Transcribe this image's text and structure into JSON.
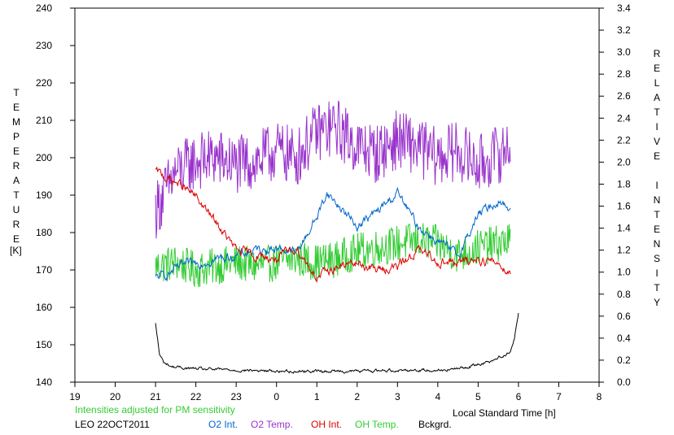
{
  "chart_data": {
    "type": "line",
    "xlabel": "Local Standard Time [h]",
    "y_left_label": "TEMPERATURE",
    "y_left_unit": "[K]",
    "y_right_label": "RELATIVE INTENSITY",
    "x_ticks": [
      "19",
      "20",
      "21",
      "22",
      "23",
      "0",
      "1",
      "2",
      "3",
      "4",
      "5",
      "6",
      "7",
      "8"
    ],
    "x_range": [
      19,
      32
    ],
    "y_left_range": [
      140,
      240
    ],
    "y_left_ticks": [
      140,
      150,
      160,
      170,
      180,
      190,
      200,
      210,
      220,
      230,
      240
    ],
    "y_right_range": [
      0.0,
      3.4
    ],
    "y_right_ticks": [
      "0.0",
      "0.2",
      "0.4",
      "0.6",
      "0.8",
      "1.0",
      "1.2",
      "1.4",
      "1.6",
      "1.8",
      "2.0",
      "2.2",
      "2.4",
      "2.6",
      "2.8",
      "3.0",
      "3.2",
      "3.4"
    ],
    "note": "Intensities adjusted for PM sensitivity",
    "station": "LEO 22OCT2011",
    "legend": [
      {
        "name": "O2 Int.",
        "color": "#0066cc"
      },
      {
        "name": "O2 Temp.",
        "color": "#9933cc"
      },
      {
        "name": "OH Int.",
        "color": "#dd0000"
      },
      {
        "name": "OH Temp.",
        "color": "#33cc33"
      },
      {
        "name": "Bckgrd.",
        "color": "#000000"
      }
    ],
    "series": [
      {
        "name": "O2 Temp.",
        "axis": "left",
        "color": "#9933cc",
        "x": [
          21.0,
          21.5,
          22.0,
          22.5,
          23.0,
          23.5,
          24.0,
          24.5,
          25.0,
          25.5,
          26.0,
          26.5,
          27.0,
          27.5,
          28.0,
          28.5,
          29.0,
          29.5,
          29.8
        ],
        "y": [
          186,
          196,
          199,
          200,
          198,
          199,
          202,
          200,
          207,
          208,
          203,
          201,
          205,
          203,
          200,
          202,
          198,
          201,
          203
        ],
        "noise": 8
      },
      {
        "name": "OH Temp.",
        "axis": "left",
        "color": "#33cc33",
        "x": [
          21.0,
          21.5,
          22.0,
          22.5,
          23.0,
          23.5,
          24.0,
          24.5,
          25.0,
          25.5,
          26.0,
          26.5,
          27.0,
          27.5,
          28.0,
          28.5,
          29.0,
          29.5,
          29.8
        ],
        "y": [
          171,
          172,
          170,
          171,
          172,
          171,
          172,
          173,
          172,
          173,
          175,
          176,
          177,
          178,
          177,
          174,
          176,
          177,
          178
        ],
        "noise": 5
      },
      {
        "name": "O2 Int.",
        "axis": "right",
        "color": "#0066cc",
        "x": [
          21.0,
          21.3,
          21.6,
          22.0,
          22.5,
          23.0,
          23.5,
          24.0,
          24.5,
          25.0,
          25.25,
          25.5,
          26.0,
          26.5,
          27.0,
          27.5,
          28.0,
          28.5,
          29.0,
          29.5,
          29.8
        ],
        "y": [
          0.95,
          0.98,
          1.05,
          1.08,
          1.12,
          1.15,
          1.2,
          1.22,
          1.18,
          1.5,
          1.72,
          1.62,
          1.42,
          1.55,
          1.72,
          1.42,
          1.28,
          1.15,
          1.52,
          1.65,
          1.58
        ],
        "noise": 0.03
      },
      {
        "name": "OH Int.",
        "axis": "right",
        "color": "#dd0000",
        "x": [
          21.0,
          21.3,
          21.6,
          22.0,
          22.5,
          23.0,
          23.5,
          24.0,
          24.5,
          25.0,
          25.5,
          26.0,
          26.5,
          27.0,
          27.5,
          28.0,
          28.5,
          29.0,
          29.5,
          29.8
        ],
        "y": [
          1.92,
          1.85,
          1.8,
          1.68,
          1.45,
          1.2,
          1.15,
          1.12,
          1.22,
          0.95,
          1.05,
          1.08,
          1.02,
          1.05,
          1.2,
          1.1,
          1.08,
          1.12,
          1.08,
          1.0
        ],
        "noise": 0.03
      },
      {
        "name": "Bckgrd.",
        "axis": "right",
        "color": "#000000",
        "x": [
          21.0,
          21.1,
          21.2,
          21.4,
          22.0,
          23.0,
          24.0,
          25.0,
          26.0,
          27.0,
          28.0,
          28.5,
          29.0,
          29.5,
          29.8,
          29.9,
          30.0
        ],
        "y": [
          0.53,
          0.25,
          0.18,
          0.14,
          0.12,
          0.11,
          0.1,
          0.1,
          0.1,
          0.11,
          0.11,
          0.12,
          0.16,
          0.22,
          0.28,
          0.4,
          0.63
        ],
        "noise": 0.01
      }
    ]
  }
}
